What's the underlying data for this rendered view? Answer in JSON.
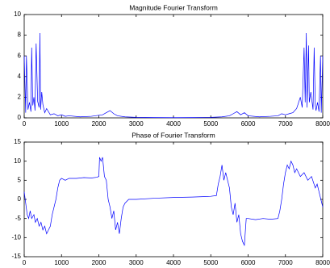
{
  "chart_data": [
    {
      "type": "line",
      "title": "Magnitude Fourier Transform",
      "x": [
        0,
        40,
        60,
        100,
        140,
        180,
        200,
        230,
        260,
        290,
        320,
        360,
        400,
        420,
        440,
        470,
        500,
        550,
        600,
        700,
        800,
        900,
        1000,
        1100,
        1200,
        1500,
        1800,
        2100,
        2200,
        2300,
        2400,
        2500,
        2700,
        3000,
        3500,
        4000,
        4500,
        5000,
        5300,
        5500,
        5600,
        5700,
        5800,
        5900,
        6000,
        6300,
        6600,
        6800,
        6900,
        7000,
        7100,
        7200,
        7300,
        7400,
        7450,
        7500,
        7530,
        7560,
        7580,
        7620,
        7640,
        7680,
        7740,
        7770,
        7800,
        7820,
        7860,
        7900,
        7940,
        7960,
        8000
      ],
      "series": [
        {
          "color": "#0000ff",
          "values": [
            6.0,
            0.5,
            6.0,
            0.8,
            1.5,
            0.6,
            6.8,
            1.2,
            2.0,
            0.7,
            7.2,
            1.6,
            1.0,
            8.2,
            0.8,
            2.5,
            1.3,
            0.5,
            0.9,
            0.3,
            0.4,
            0.2,
            0.3,
            0.15,
            0.2,
            0.1,
            0.15,
            0.3,
            0.5,
            0.7,
            0.4,
            0.2,
            0.1,
            0.05,
            0.03,
            0.02,
            0.03,
            0.05,
            0.1,
            0.2,
            0.4,
            0.6,
            0.3,
            0.5,
            0.2,
            0.1,
            0.15,
            0.2,
            0.4,
            0.3,
            0.4,
            0.5,
            0.9,
            2.0,
            1.0,
            6.8,
            1.5,
            8.2,
            1.0,
            7.0,
            1.5,
            2.5,
            0.8,
            6.8,
            1.2,
            0.7,
            1.5,
            0.6,
            6.0,
            0.5,
            6.0
          ]
        }
      ],
      "xlim": [
        0,
        8000
      ],
      "xticks": [
        0,
        1000,
        2000,
        3000,
        4000,
        5000,
        6000,
        7000,
        8000
      ],
      "ylim": [
        0,
        10
      ],
      "yticks": [
        0,
        2,
        4,
        6,
        8,
        10
      ]
    },
    {
      "type": "line",
      "title": "Phase of Fourier Transform",
      "x": [
        0,
        40,
        80,
        120,
        160,
        200,
        260,
        300,
        350,
        400,
        450,
        500,
        550,
        600,
        650,
        700,
        750,
        800,
        850,
        900,
        950,
        1000,
        1100,
        1200,
        1400,
        1600,
        1800,
        1950,
        2000,
        2020,
        2060,
        2100,
        2150,
        2200,
        2250,
        2300,
        2350,
        2400,
        2450,
        2500,
        2550,
        2600,
        2650,
        2700,
        2800,
        3000,
        3500,
        4000,
        4500,
        5000,
        5150,
        5200,
        5250,
        5300,
        5350,
        5400,
        5450,
        5500,
        5550,
        5600,
        5650,
        5700,
        5750,
        5800,
        5850,
        5900,
        5950,
        6000,
        6200,
        6400,
        6600,
        6800,
        6850,
        6900,
        6950,
        7000,
        7050,
        7100,
        7150,
        7200,
        7250,
        7300,
        7400,
        7500,
        7600,
        7700,
        7800,
        7850,
        7900,
        7950,
        8000
      ],
      "series": [
        {
          "color": "#0000ff",
          "values": [
            2,
            -1,
            -4,
            -5,
            -3,
            -5,
            -4,
            -6,
            -5,
            -7,
            -6,
            -8,
            -7,
            -9,
            -8,
            -7,
            -4,
            -2,
            0,
            3,
            5,
            5.5,
            5,
            5.5,
            5.5,
            5.7,
            5.6,
            5.8,
            6,
            11,
            10,
            11,
            6,
            5,
            0,
            -2,
            -5,
            -3,
            -8,
            -6,
            -9,
            -5,
            -2,
            -1,
            0,
            0,
            0.3,
            0.5,
            0.6,
            0.8,
            1,
            4,
            6,
            9,
            5,
            7,
            5,
            3,
            -2,
            -4,
            -1,
            -6,
            -4,
            -9,
            -11,
            -12,
            -5,
            -5,
            -5.3,
            -5,
            -5.2,
            -5,
            -3,
            0,
            4,
            7,
            9,
            8,
            10,
            9,
            7,
            8,
            6,
            7,
            5,
            6,
            3,
            4,
            2,
            0,
            -2
          ]
        }
      ],
      "xlim": [
        0,
        8000
      ],
      "xticks": [
        0,
        1000,
        2000,
        3000,
        4000,
        5000,
        6000,
        7000,
        8000
      ],
      "ylim": [
        -15,
        15
      ],
      "yticks": [
        -15,
        -10,
        -5,
        0,
        5,
        10,
        15
      ]
    }
  ]
}
